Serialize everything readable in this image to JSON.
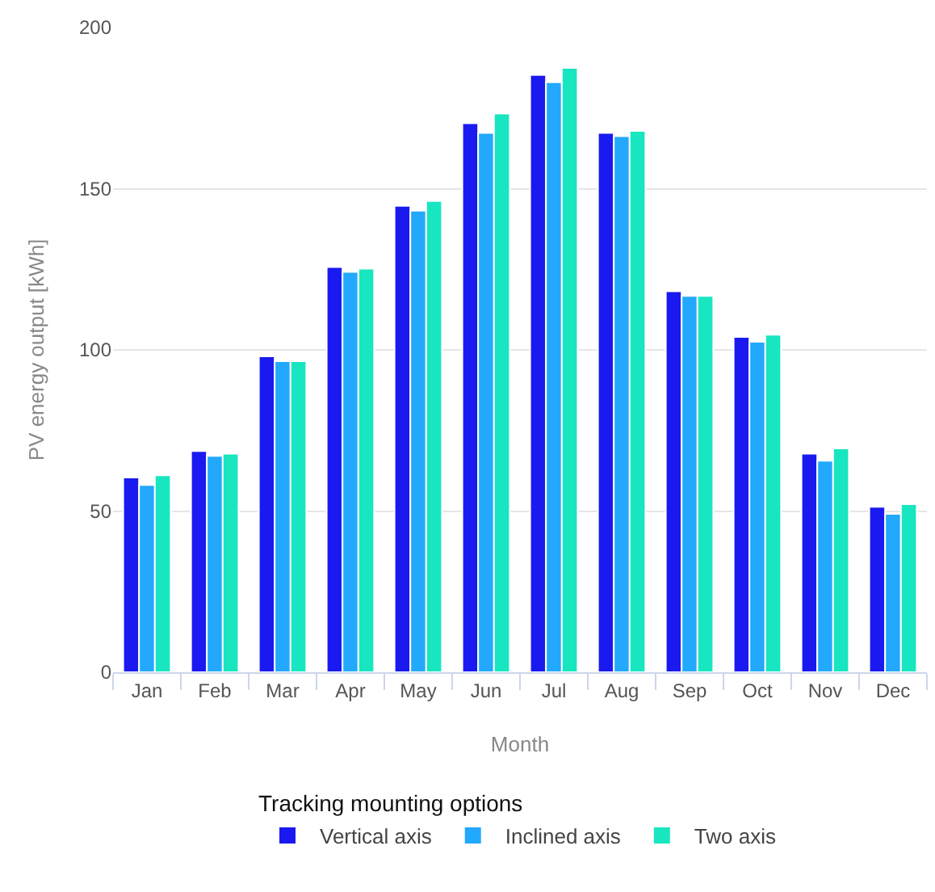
{
  "chart_data": {
    "type": "bar",
    "xlabel": "Month",
    "ylabel": "PV energy output [kWh]",
    "legend_title": "Tracking mounting options",
    "categories": [
      "Jan",
      "Feb",
      "Mar",
      "Apr",
      "May",
      "Jun",
      "Jul",
      "Aug",
      "Sep",
      "Oct",
      "Nov",
      "Dec"
    ],
    "series": [
      {
        "name": "Vertical axis",
        "color": "#1a1af0",
        "values": [
          60.4,
          68.6,
          98.0,
          125.7,
          144.7,
          170.3,
          185.3,
          167.3,
          118.2,
          104.0,
          67.8,
          51.3
        ]
      },
      {
        "name": "Inclined axis",
        "color": "#22a8fc",
        "values": [
          58.1,
          67.1,
          96.5,
          124.2,
          143.2,
          167.3,
          183.0,
          166.3,
          116.7,
          102.5,
          65.6,
          49.1
        ]
      },
      {
        "name": "Two axis",
        "color": "#18e6c0",
        "values": [
          61.1,
          67.8,
          96.5,
          125.2,
          146.2,
          173.3,
          187.5,
          167.9,
          116.7,
          104.7,
          69.4,
          52.1
        ]
      }
    ],
    "ylim": [
      0,
      200
    ],
    "yticks": [
      0,
      50,
      100,
      150,
      200
    ],
    "grid": "y",
    "legend": "bottom"
  }
}
